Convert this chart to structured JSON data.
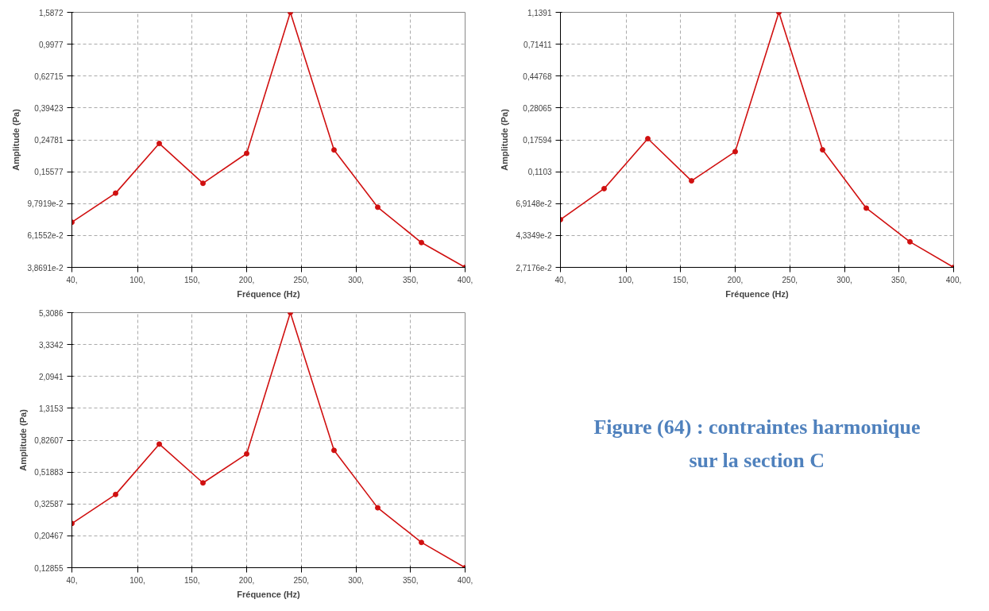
{
  "chart_data": [
    {
      "type": "line",
      "xlabel": "Fréquence (Hz)",
      "ylabel": "Amplitude (Pa)",
      "log": "y",
      "grid": true,
      "marker": "circle",
      "line_style": "solid",
      "x": [
        40,
        80,
        120,
        160,
        200,
        240,
        280,
        320,
        360,
        400
      ],
      "series": [
        {
          "color": "#d01010",
          "values": [
            0.0747,
            0.114,
            0.235,
            0.1316,
            0.2036,
            1.5872,
            0.214,
            0.0929,
            0.0555,
            0.038691
          ]
        }
      ],
      "xlim": [
        40,
        400
      ],
      "xticks": [
        {
          "value": 40,
          "label": "40,"
        },
        {
          "value": 100,
          "label": "100,"
        },
        {
          "value": 150,
          "label": "150,"
        },
        {
          "value": 200,
          "label": "200,"
        },
        {
          "value": 250,
          "label": "250,"
        },
        {
          "value": 300,
          "label": "300,"
        },
        {
          "value": 350,
          "label": "350,"
        },
        {
          "value": 400,
          "label": "400,"
        }
      ],
      "ylim": [
        0.038691,
        1.5872
      ],
      "yticks": [
        {
          "value": 0.038691,
          "label": "3,8691e-2"
        },
        {
          "value": 0.061552,
          "label": "6,1552e-2"
        },
        {
          "value": 0.097919,
          "label": "9,7919e-2"
        },
        {
          "value": 0.15577,
          "label": "0,15577"
        },
        {
          "value": 0.24781,
          "label": "0,24781"
        },
        {
          "value": 0.39423,
          "label": "0,39423"
        },
        {
          "value": 0.62715,
          "label": "0,62715"
        },
        {
          "value": 0.9977,
          "label": "0,9977"
        },
        {
          "value": 1.5872,
          "label": "1,5872"
        }
      ]
    },
    {
      "type": "line",
      "xlabel": "Fréquence (Hz)",
      "ylabel": "Amplitude (Pa)",
      "log": "y",
      "grid": true,
      "marker": "circle",
      "line_style": "solid",
      "x": [
        40,
        80,
        120,
        160,
        200,
        240,
        280,
        320,
        360,
        400
      ],
      "series": [
        {
          "color": "#d01010",
          "values": [
            0.0547,
            0.0861,
            0.179,
            0.0965,
            0.148,
            1.1391,
            0.152,
            0.0647,
            0.0395,
            0.027176
          ]
        }
      ],
      "xlim": [
        40,
        400
      ],
      "xticks": [
        {
          "value": 40,
          "label": "40,"
        },
        {
          "value": 100,
          "label": "100,"
        },
        {
          "value": 150,
          "label": "150,"
        },
        {
          "value": 200,
          "label": "200,"
        },
        {
          "value": 250,
          "label": "250,"
        },
        {
          "value": 300,
          "label": "300,"
        },
        {
          "value": 350,
          "label": "350,"
        },
        {
          "value": 400,
          "label": "400,"
        }
      ],
      "ylim": [
        0.027176,
        1.1391
      ],
      "yticks": [
        {
          "value": 0.027176,
          "label": "2,7176e-2"
        },
        {
          "value": 0.043349,
          "label": "4,3349e-2"
        },
        {
          "value": 0.069148,
          "label": "6,9148e-2"
        },
        {
          "value": 0.1103,
          "label": "0,1103"
        },
        {
          "value": 0.17594,
          "label": "0,17594"
        },
        {
          "value": 0.28065,
          "label": "0,28065"
        },
        {
          "value": 0.44768,
          "label": "0,44768"
        },
        {
          "value": 0.71411,
          "label": "0,71411"
        },
        {
          "value": 1.1391,
          "label": "1,1391"
        }
      ]
    },
    {
      "type": "line",
      "xlabel": "Fréquence (Hz)",
      "ylabel": "Amplitude (Pa)",
      "log": "y",
      "grid": true,
      "marker": "circle",
      "line_style": "solid",
      "x": [
        40,
        80,
        120,
        160,
        200,
        240,
        280,
        320,
        360,
        400
      ],
      "series": [
        {
          "color": "#d01010",
          "values": [
            0.245,
            0.374,
            0.78,
            0.443,
            0.676,
            5.3086,
            0.712,
            0.308,
            0.186,
            0.12855
          ]
        }
      ],
      "xlim": [
        40,
        400
      ],
      "xticks": [
        {
          "value": 40,
          "label": "40,"
        },
        {
          "value": 100,
          "label": "100,"
        },
        {
          "value": 150,
          "label": "150,"
        },
        {
          "value": 200,
          "label": "200,"
        },
        {
          "value": 250,
          "label": "250,"
        },
        {
          "value": 300,
          "label": "300,"
        },
        {
          "value": 350,
          "label": "350,"
        },
        {
          "value": 400,
          "label": "400,"
        }
      ],
      "ylim": [
        0.12855,
        5.3086
      ],
      "yticks": [
        {
          "value": 0.12855,
          "label": "0,12855"
        },
        {
          "value": 0.20467,
          "label": "0,20467"
        },
        {
          "value": 0.32587,
          "label": "0,32587"
        },
        {
          "value": 0.51883,
          "label": "0,51883"
        },
        {
          "value": 0.82607,
          "label": "0,82607"
        },
        {
          "value": 1.3153,
          "label": "1,3153"
        },
        {
          "value": 2.0941,
          "label": "2,0941"
        },
        {
          "value": 3.3342,
          "label": "3,3342"
        },
        {
          "value": 5.3086,
          "label": "5,3086"
        }
      ]
    },
    {
      "type": "other",
      "title": "Figure (64) : contraintes harmonique sur la section C"
    }
  ]
}
